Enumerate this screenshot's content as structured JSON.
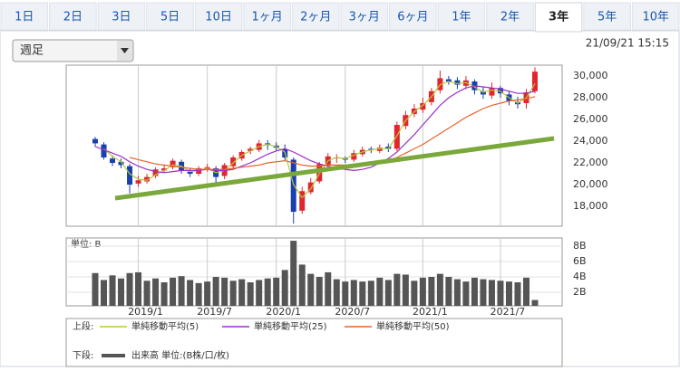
{
  "tabs": [
    {
      "label": "1日",
      "selected": false
    },
    {
      "label": "2日",
      "selected": false
    },
    {
      "label": "3日",
      "selected": false
    },
    {
      "label": "5日",
      "selected": false
    },
    {
      "label": "10日",
      "selected": false
    },
    {
      "label": "1ヶ月",
      "selected": false
    },
    {
      "label": "2ヶ月",
      "selected": false
    },
    {
      "label": "3ヶ月",
      "selected": false
    },
    {
      "label": "6ヶ月",
      "selected": false
    },
    {
      "label": "1年",
      "selected": false
    },
    {
      "label": "2年",
      "selected": false
    },
    {
      "label": "3年",
      "selected": true
    },
    {
      "label": "5年",
      "selected": false
    },
    {
      "label": "10年",
      "selected": false
    }
  ],
  "dropdown": "週足",
  "timestamp": "21/09/21 15:15",
  "chart_data": [
    {
      "type": "candlestick",
      "legend_label": "上段:",
      "up_color": "#e0262e",
      "down_color": "#1a3fae",
      "open": [
        24200,
        23700,
        22400,
        22100,
        21700,
        20100,
        20300,
        20800,
        21300,
        21600,
        22100,
        21200,
        21000,
        21400,
        21500,
        20800,
        21700,
        22400,
        23100,
        23200,
        23800,
        23600,
        23300,
        22300,
        17600,
        19300,
        20300,
        21800,
        22500,
        22400,
        22300,
        22800,
        23300,
        23100,
        23500,
        23300,
        25400,
        26500,
        26900,
        27600,
        28700,
        29700,
        29600,
        29100,
        29500,
        28600,
        28200,
        28900,
        28300,
        27600,
        27500,
        28600
      ],
      "high": [
        24400,
        23900,
        22700,
        22400,
        21900,
        20800,
        21000,
        21600,
        21800,
        22400,
        22300,
        21500,
        21700,
        21900,
        21700,
        22000,
        22700,
        23200,
        23500,
        24100,
        24100,
        23900,
        23700,
        22500,
        19800,
        20600,
        22100,
        22900,
        22800,
        22600,
        23200,
        23500,
        23500,
        23700,
        23800,
        25800,
        26800,
        27400,
        28000,
        28900,
        30500,
        30000,
        29900,
        30000,
        29700,
        29000,
        29400,
        29100,
        28600,
        28100,
        28800,
        30800
      ],
      "low": [
        23500,
        22300,
        21700,
        21500,
        19200,
        19800,
        20100,
        20600,
        21100,
        21400,
        21000,
        20700,
        20800,
        21200,
        20200,
        20500,
        21500,
        22200,
        22800,
        23000,
        23200,
        23100,
        22200,
        16400,
        17300,
        19100,
        20100,
        21600,
        22000,
        22000,
        22100,
        22600,
        22900,
        22900,
        23000,
        23100,
        25100,
        26200,
        26600,
        27300,
        28400,
        29200,
        28800,
        28800,
        28300,
        27900,
        27900,
        28000,
        27300,
        27000,
        27000,
        28400
      ],
      "close": [
        23800,
        22500,
        22000,
        21800,
        20000,
        20400,
        20700,
        21400,
        21500,
        22200,
        21300,
        21000,
        21500,
        21600,
        20700,
        21800,
        22500,
        23000,
        23300,
        23800,
        23700,
        23400,
        22500,
        17500,
        19400,
        20200,
        21900,
        22600,
        22500,
        22300,
        22900,
        23200,
        23200,
        23400,
        23300,
        25500,
        26400,
        27000,
        27500,
        28600,
        29800,
        29500,
        29200,
        29600,
        28700,
        28300,
        28900,
        28400,
        27700,
        27400,
        28500,
        30400
      ],
      "series": [
        {
          "name": "単純移動平均(5)",
          "color": "#b5c93a",
          "values": [
            null,
            23300,
            22600,
            22100,
            21000,
            20500,
            20400,
            20900,
            21300,
            21800,
            21700,
            21200,
            21300,
            21500,
            21100,
            21300,
            22000,
            22700,
            23100,
            23500,
            23700,
            23500,
            23000,
            20000,
            18800,
            19600,
            21000,
            22200,
            22500,
            22400,
            22700,
            23000,
            23200,
            23300,
            23300,
            24500,
            25900,
            26700,
            27300,
            28100,
            29200,
            29500,
            29300,
            29400,
            29000,
            28500,
            28700,
            28600,
            28000,
            27500,
            28000,
            29300
          ]
        },
        {
          "name": "単純移動平均(25)",
          "color": "#9b2fc8",
          "values": [
            23500,
            23200,
            22900,
            22600,
            22100,
            21700,
            21400,
            21200,
            21100,
            21200,
            21300,
            21300,
            21300,
            21400,
            21300,
            21300,
            21400,
            21700,
            22000,
            22400,
            22800,
            23100,
            23300,
            23000,
            22600,
            22200,
            21900,
            21700,
            21500,
            21400,
            21300,
            21400,
            21600,
            22000,
            22400,
            23000,
            23800,
            24600,
            25500,
            26400,
            27300,
            28000,
            28500,
            28900,
            29100,
            29000,
            28900,
            28800,
            28600,
            28400,
            28400,
            28600
          ]
        },
        {
          "name": "単純移動平均(50)",
          "color": "#e8622a",
          "values": [
            null,
            null,
            null,
            null,
            22500,
            22300,
            22100,
            21900,
            21800,
            21700,
            21600,
            21500,
            21400,
            21400,
            21400,
            21400,
            21500,
            21600,
            21700,
            21800,
            22000,
            22100,
            22200,
            22000,
            21800,
            21700,
            21700,
            21800,
            21800,
            21800,
            21800,
            21900,
            22000,
            22100,
            22200,
            22500,
            22900,
            23300,
            23700,
            24200,
            24700,
            25200,
            25700,
            26200,
            26600,
            27000,
            27300,
            27500,
            27700,
            27800,
            27900,
            28100
          ]
        }
      ],
      "ylim": [
        16170,
        31000
      ],
      "yticks": [
        {
          "value": 18000,
          "label": "18,000"
        },
        {
          "value": 20000,
          "label": "20,000"
        },
        {
          "value": 22000,
          "label": "22,000"
        },
        {
          "value": 24000,
          "label": "24,000"
        },
        {
          "value": 26000,
          "label": "26,000"
        },
        {
          "value": 28000,
          "label": "28,000"
        },
        {
          "value": 30000,
          "label": "30,000"
        }
      ],
      "grid": true
    },
    {
      "type": "bar",
      "title": "単位: B",
      "legend_label": "下段:",
      "categories": [
        null,
        null,
        null,
        null,
        null,
        "2019/1",
        null,
        null,
        null,
        null,
        null,
        null,
        null,
        "2019/7",
        null,
        null,
        null,
        null,
        null,
        null,
        null,
        "2020/1",
        null,
        null,
        null,
        null,
        null,
        null,
        null,
        "2020/7",
        null,
        null,
        null,
        null,
        null,
        null,
        null,
        null,
        "2021/1",
        null,
        null,
        null,
        null,
        null,
        null,
        null,
        null,
        "2021/7",
        null,
        null,
        null,
        null
      ],
      "series": [
        {
          "name": "出来高 単位:(B株/口/枚)",
          "color": "#555555",
          "values": [
            4.5,
            3.6,
            4.2,
            3.8,
            4.5,
            4.6,
            3.5,
            3.8,
            3.3,
            3.9,
            4.1,
            3.6,
            3.2,
            3.4,
            4.0,
            3.9,
            3.5,
            3.7,
            3.3,
            3.6,
            3.8,
            3.9,
            4.9,
            8.7,
            5.6,
            4.4,
            4.0,
            4.6,
            3.7,
            3.4,
            3.6,
            3.4,
            3.5,
            3.9,
            3.6,
            4.4,
            4.3,
            3.5,
            3.9,
            4.0,
            4.4,
            4.0,
            3.7,
            3.4,
            3.9,
            3.7,
            3.6,
            3.5,
            3.4,
            3.3,
            3.9,
            1.0
          ]
        }
      ],
      "ylim": [
        0.24,
        9.06
      ],
      "yticks": [
        {
          "value": 2,
          "label": "2B"
        },
        {
          "value": 4,
          "label": "4B"
        },
        {
          "value": 6,
          "label": "6B"
        },
        {
          "value": 8,
          "label": "8B"
        }
      ],
      "grid": true
    }
  ]
}
